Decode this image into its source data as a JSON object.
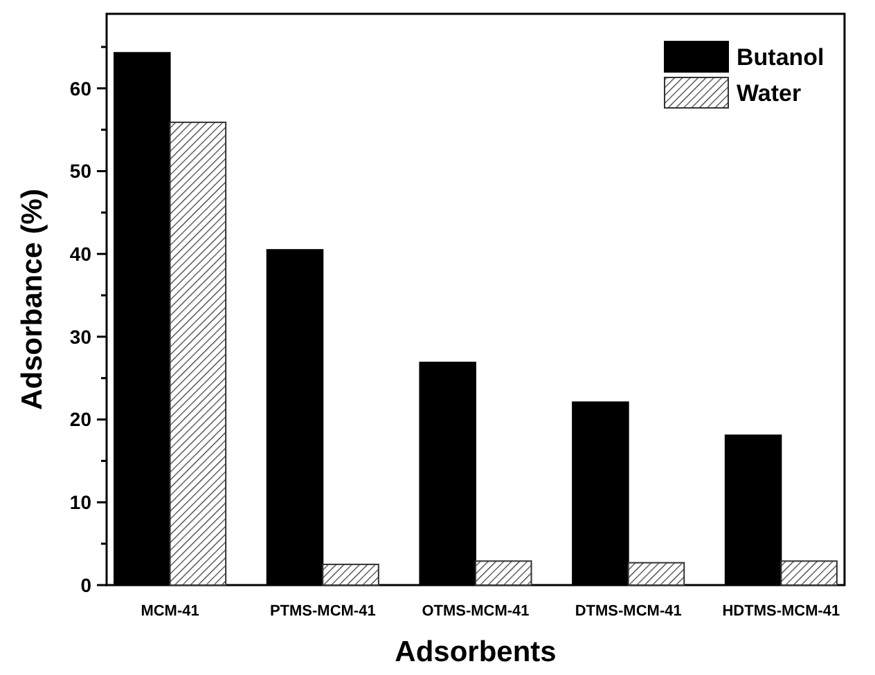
{
  "chart_data": {
    "type": "bar",
    "xlabel": "Adsorbents",
    "ylabel": "Adsorbance (%)",
    "categories": [
      "MCM-41",
      "PTMS-MCM-41",
      "OTMS-MCM-41",
      "DTMS-MCM-41",
      "HDTMS-MCM-41"
    ],
    "series": [
      {
        "name": "Butanol",
        "color": "#000000",
        "values": [
          64.3,
          40.5,
          26.9,
          22.1,
          18.1
        ]
      },
      {
        "name": "Water",
        "color": "#333333",
        "values": [
          55.9,
          2.5,
          2.9,
          2.7,
          2.9
        ]
      }
    ],
    "ylim": [
      0,
      69
    ],
    "yticks": [
      0,
      {
        "value": 5,
        "label": null
      },
      10,
      {
        "value": 15,
        "label": null
      },
      20,
      {
        "value": 25,
        "label": null
      },
      30,
      {
        "value": 35,
        "label": null
      },
      40,
      {
        "value": 45,
        "label": null
      },
      50,
      {
        "value": 55,
        "label": null
      },
      60,
      {
        "value": 65,
        "label": null
      }
    ],
    "legend": "top right"
  }
}
